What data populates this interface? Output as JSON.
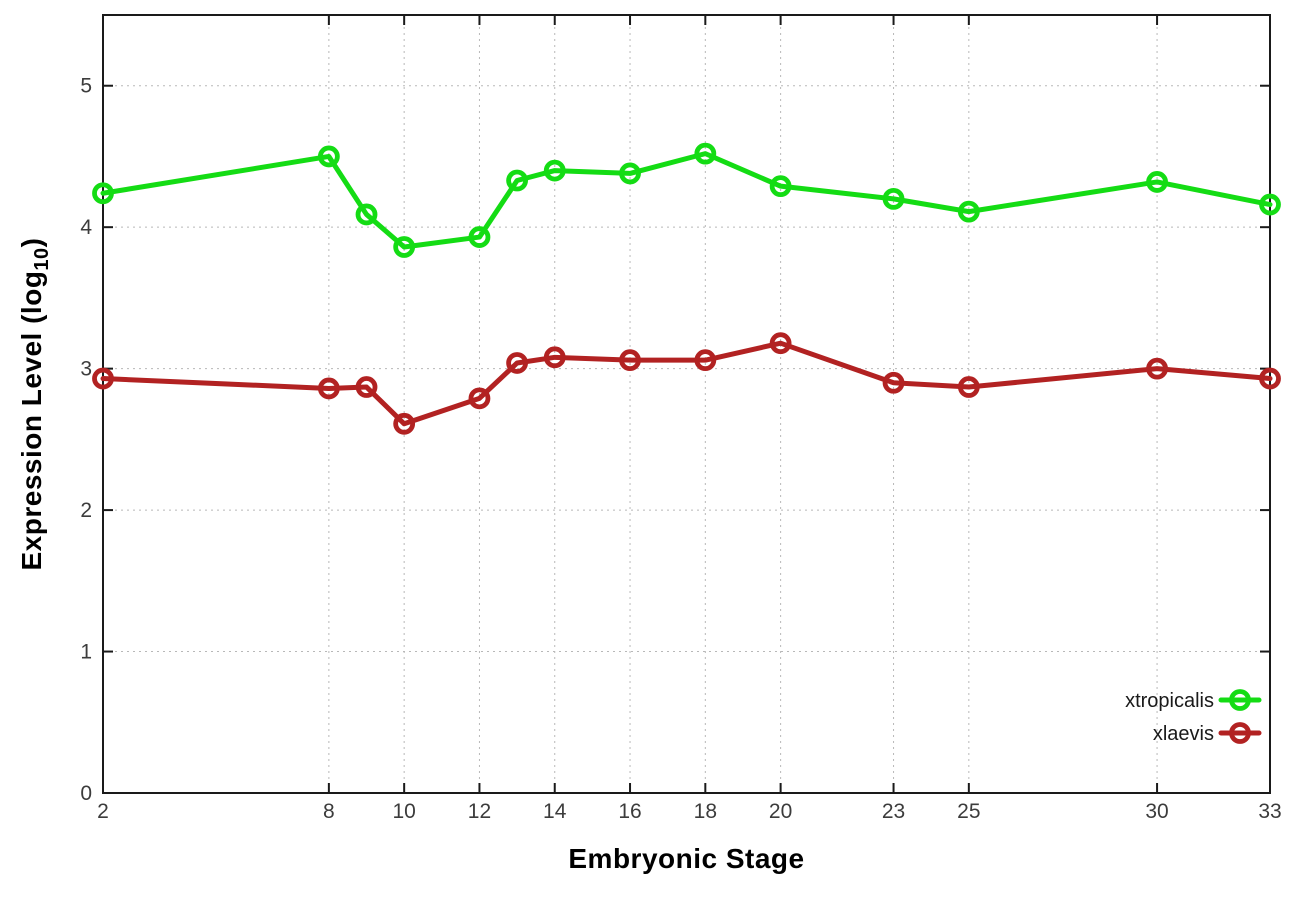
{
  "figure": {
    "background": "#ffffff",
    "xlabel": "Embryonic Stage",
    "ylabel": {
      "prefix": "Expression Level (log",
      "sub": "10",
      "suffix": ")"
    }
  },
  "chart_data": {
    "type": "line",
    "title": "",
    "xlabel": "Embryonic Stage",
    "ylabel": "Expression Level (log10)",
    "x": [
      2,
      8,
      9,
      10,
      12,
      13,
      14,
      16,
      18,
      20,
      23,
      25,
      30,
      33
    ],
    "series": [
      {
        "name": "xtropicalis",
        "color": "#14DC14",
        "values": [
          4.24,
          4.5,
          4.09,
          3.86,
          3.93,
          4.33,
          4.4,
          4.38,
          4.52,
          4.29,
          4.2,
          4.11,
          4.32,
          4.16
        ]
      },
      {
        "name": "xlaevis",
        "color": "#B22222",
        "values": [
          2.93,
          2.86,
          2.87,
          2.61,
          2.79,
          3.04,
          3.08,
          3.06,
          3.06,
          3.18,
          2.9,
          2.87,
          3.0,
          2.93
        ]
      }
    ],
    "xticks": [
      2,
      8,
      10,
      12,
      14,
      16,
      18,
      20,
      23,
      25,
      30,
      33
    ],
    "yticks": [
      0,
      1,
      2,
      3,
      4,
      5
    ],
    "xlim": [
      2,
      33
    ],
    "ylim": [
      0,
      5.5
    ],
    "grid": true,
    "grid_style": "dotted",
    "legend_position": "bottom-right-inside",
    "marker": "open-circle",
    "axis_color": "#1a1a1a",
    "tick_label_color": "#3c3c3c",
    "grid_color": "#b8b8b8"
  }
}
